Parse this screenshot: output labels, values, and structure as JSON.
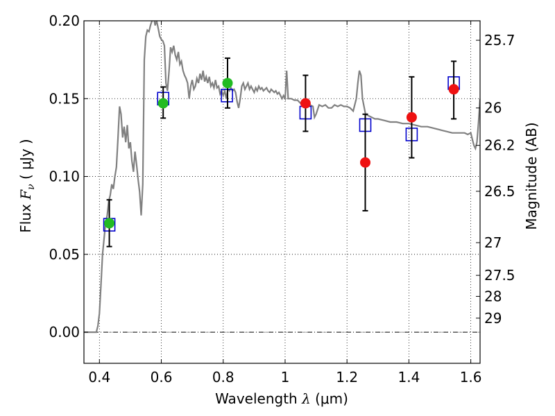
{
  "chart_data": {
    "type": "scatter",
    "xlabel": "Wavelength",
    "xlabel_symbol": "λ",
    "xlabel_unit": "(μm)",
    "ylabel": "Flux",
    "ylabel_symbol": "F",
    "ylabel_subscript": "ν",
    "ylabel_unit": "( μJy )",
    "y2label": "Magnitude (AB)",
    "xlim": [
      0.35,
      1.63
    ],
    "ylim": [
      -0.02,
      0.2
    ],
    "grid": true,
    "x_ticks": [
      {
        "value": 0.4,
        "label": "0.4"
      },
      {
        "value": 0.6,
        "label": "0.6"
      },
      {
        "value": 0.8,
        "label": "0.8"
      },
      {
        "value": 1.0,
        "label": "1"
      },
      {
        "value": 1.2,
        "label": "1.2"
      },
      {
        "value": 1.4,
        "label": "1.4"
      },
      {
        "value": 1.6,
        "label": "1.6"
      }
    ],
    "y_ticks": [
      {
        "value": 0.0,
        "label": "0.00"
      },
      {
        "value": 0.05,
        "label": "0.05"
      },
      {
        "value": 0.1,
        "label": "0.10"
      },
      {
        "value": 0.15,
        "label": "0.15"
      },
      {
        "value": 0.2,
        "label": "0.20"
      }
    ],
    "y2_ticks": [
      {
        "flux": 0.1875,
        "label": "25.7"
      },
      {
        "flux": 0.144,
        "label": "26"
      },
      {
        "flux": 0.12,
        "label": "26.2"
      },
      {
        "flux": 0.0905,
        "label": "26.5"
      },
      {
        "flux": 0.0575,
        "label": "27"
      },
      {
        "flux": 0.0365,
        "label": "27.5"
      },
      {
        "flux": 0.023,
        "label": "28"
      },
      {
        "flux": 0.009,
        "label": "29"
      }
    ],
    "series": [
      {
        "name": "model-spectrum",
        "kind": "line",
        "color": "#808080",
        "points": [
          [
            0.35,
            0.0
          ],
          [
            0.39,
            0.0
          ],
          [
            0.395,
            0.004
          ],
          [
            0.4,
            0.012
          ],
          [
            0.405,
            0.03
          ],
          [
            0.41,
            0.05
          ],
          [
            0.415,
            0.06
          ],
          [
            0.42,
            0.07
          ],
          [
            0.425,
            0.075
          ],
          [
            0.43,
            0.084
          ],
          [
            0.435,
            0.088
          ],
          [
            0.44,
            0.095
          ],
          [
            0.445,
            0.092
          ],
          [
            0.45,
            0.1
          ],
          [
            0.455,
            0.106
          ],
          [
            0.46,
            0.125
          ],
          [
            0.465,
            0.145
          ],
          [
            0.47,
            0.14
          ],
          [
            0.475,
            0.125
          ],
          [
            0.48,
            0.132
          ],
          [
            0.485,
            0.122
          ],
          [
            0.49,
            0.133
          ],
          [
            0.495,
            0.118
          ],
          [
            0.5,
            0.122
          ],
          [
            0.505,
            0.11
          ],
          [
            0.51,
            0.103
          ],
          [
            0.515,
            0.116
          ],
          [
            0.52,
            0.108
          ],
          [
            0.525,
            0.098
          ],
          [
            0.53,
            0.09
          ],
          [
            0.535,
            0.075
          ],
          [
            0.54,
            0.095
          ],
          [
            0.545,
            0.175
          ],
          [
            0.55,
            0.19
          ],
          [
            0.555,
            0.194
          ],
          [
            0.56,
            0.193
          ],
          [
            0.565,
            0.197
          ],
          [
            0.57,
            0.2
          ],
          [
            0.575,
            0.203
          ],
          [
            0.58,
            0.197
          ],
          [
            0.585,
            0.2
          ],
          [
            0.59,
            0.195
          ],
          [
            0.595,
            0.19
          ],
          [
            0.6,
            0.188
          ],
          [
            0.605,
            0.187
          ],
          [
            0.61,
            0.184
          ],
          [
            0.615,
            0.16
          ],
          [
            0.62,
            0.155
          ],
          [
            0.625,
            0.168
          ],
          [
            0.63,
            0.183
          ],
          [
            0.635,
            0.18
          ],
          [
            0.64,
            0.184
          ],
          [
            0.645,
            0.178
          ],
          [
            0.65,
            0.175
          ],
          [
            0.655,
            0.18
          ],
          [
            0.66,
            0.172
          ],
          [
            0.665,
            0.174
          ],
          [
            0.67,
            0.168
          ],
          [
            0.675,
            0.165
          ],
          [
            0.68,
            0.163
          ],
          [
            0.685,
            0.16
          ],
          [
            0.69,
            0.15
          ],
          [
            0.695,
            0.158
          ],
          [
            0.7,
            0.162
          ],
          [
            0.705,
            0.156
          ],
          [
            0.71,
            0.158
          ],
          [
            0.715,
            0.163
          ],
          [
            0.72,
            0.16
          ],
          [
            0.725,
            0.166
          ],
          [
            0.73,
            0.162
          ],
          [
            0.735,
            0.168
          ],
          [
            0.74,
            0.161
          ],
          [
            0.745,
            0.164
          ],
          [
            0.75,
            0.16
          ],
          [
            0.755,
            0.164
          ],
          [
            0.76,
            0.158
          ],
          [
            0.765,
            0.16
          ],
          [
            0.77,
            0.157
          ],
          [
            0.775,
            0.162
          ],
          [
            0.78,
            0.157
          ],
          [
            0.785,
            0.158
          ],
          [
            0.79,
            0.153
          ],
          [
            0.795,
            0.155
          ],
          [
            0.8,
            0.152
          ],
          [
            0.805,
            0.155
          ],
          [
            0.81,
            0.15
          ],
          [
            0.815,
            0.156
          ],
          [
            0.82,
            0.155
          ],
          [
            0.825,
            0.157
          ],
          [
            0.83,
            0.155
          ],
          [
            0.835,
            0.156
          ],
          [
            0.84,
            0.154
          ],
          [
            0.845,
            0.148
          ],
          [
            0.85,
            0.144
          ],
          [
            0.855,
            0.15
          ],
          [
            0.86,
            0.158
          ],
          [
            0.865,
            0.16
          ],
          [
            0.87,
            0.156
          ],
          [
            0.875,
            0.158
          ],
          [
            0.88,
            0.16
          ],
          [
            0.885,
            0.156
          ],
          [
            0.89,
            0.158
          ],
          [
            0.895,
            0.156
          ],
          [
            0.9,
            0.154
          ],
          [
            0.905,
            0.157
          ],
          [
            0.91,
            0.155
          ],
          [
            0.915,
            0.158
          ],
          [
            0.92,
            0.156
          ],
          [
            0.925,
            0.157
          ],
          [
            0.93,
            0.155
          ],
          [
            0.935,
            0.156
          ],
          [
            0.94,
            0.157
          ],
          [
            0.945,
            0.155
          ],
          [
            0.95,
            0.154
          ],
          [
            0.955,
            0.156
          ],
          [
            0.96,
            0.155
          ],
          [
            0.965,
            0.154
          ],
          [
            0.97,
            0.155
          ],
          [
            0.975,
            0.153
          ],
          [
            0.98,
            0.154
          ],
          [
            0.985,
            0.152
          ],
          [
            0.99,
            0.15
          ],
          [
            0.995,
            0.152
          ],
          [
            1.0,
            0.15
          ],
          [
            1.005,
            0.168
          ],
          [
            1.01,
            0.15
          ],
          [
            1.02,
            0.15
          ],
          [
            1.03,
            0.149
          ],
          [
            1.04,
            0.149
          ],
          [
            1.05,
            0.147
          ],
          [
            1.06,
            0.149
          ],
          [
            1.07,
            0.146
          ],
          [
            1.08,
            0.146
          ],
          [
            1.09,
            0.145
          ],
          [
            1.095,
            0.138
          ],
          [
            1.1,
            0.14
          ],
          [
            1.11,
            0.146
          ],
          [
            1.12,
            0.145
          ],
          [
            1.13,
            0.146
          ],
          [
            1.14,
            0.144
          ],
          [
            1.15,
            0.144
          ],
          [
            1.16,
            0.146
          ],
          [
            1.17,
            0.145
          ],
          [
            1.18,
            0.146
          ],
          [
            1.19,
            0.145
          ],
          [
            1.2,
            0.145
          ],
          [
            1.21,
            0.144
          ],
          [
            1.22,
            0.142
          ],
          [
            1.23,
            0.15
          ],
          [
            1.235,
            0.16
          ],
          [
            1.24,
            0.168
          ],
          [
            1.245,
            0.165
          ],
          [
            1.25,
            0.15
          ],
          [
            1.26,
            0.14
          ],
          [
            1.27,
            0.139
          ],
          [
            1.28,
            0.138
          ],
          [
            1.29,
            0.137
          ],
          [
            1.3,
            0.137
          ],
          [
            1.32,
            0.136
          ],
          [
            1.34,
            0.135
          ],
          [
            1.36,
            0.135
          ],
          [
            1.38,
            0.134
          ],
          [
            1.4,
            0.134
          ],
          [
            1.42,
            0.133
          ],
          [
            1.44,
            0.132
          ],
          [
            1.46,
            0.132
          ],
          [
            1.48,
            0.131
          ],
          [
            1.5,
            0.13
          ],
          [
            1.52,
            0.129
          ],
          [
            1.54,
            0.128
          ],
          [
            1.56,
            0.128
          ],
          [
            1.58,
            0.128
          ],
          [
            1.59,
            0.127
          ],
          [
            1.6,
            0.128
          ],
          [
            1.605,
            0.124
          ],
          [
            1.61,
            0.12
          ],
          [
            1.615,
            0.118
          ],
          [
            1.62,
            0.122
          ],
          [
            1.625,
            0.135
          ],
          [
            1.63,
            0.15
          ]
        ]
      },
      {
        "name": "model-band-flux",
        "kind": "open-square",
        "color": "#0000cc",
        "points": [
          [
            0.432,
            0.069
          ],
          [
            0.606,
            0.15
          ],
          [
            0.812,
            0.152
          ],
          [
            1.066,
            0.141
          ],
          [
            1.259,
            0.133
          ],
          [
            1.409,
            0.127
          ],
          [
            1.545,
            0.16
          ]
        ]
      },
      {
        "name": "optical-detection",
        "kind": "filled-circle",
        "color": "#22bb22",
        "points": [
          [
            0.432,
            0.07
          ],
          [
            0.606,
            0.147
          ],
          [
            0.814,
            0.16
          ]
        ]
      },
      {
        "name": "nir-detection",
        "kind": "filled-circle",
        "color": "#ee1111",
        "points": [
          [
            1.066,
            0.147
          ],
          [
            1.259,
            0.109
          ],
          [
            1.409,
            0.138
          ],
          [
            1.545,
            0.156
          ]
        ]
      },
      {
        "name": "error-bars",
        "kind": "errorbar",
        "color": "#000000",
        "points": [
          {
            "x": 0.432,
            "low": 0.055,
            "high": 0.085
          },
          {
            "x": 0.606,
            "low": 0.1375,
            "high": 0.1575
          },
          {
            "x": 0.814,
            "low": 0.144,
            "high": 0.176
          },
          {
            "x": 1.066,
            "low": 0.129,
            "high": 0.165
          },
          {
            "x": 1.259,
            "low": 0.078,
            "high": 0.14
          },
          {
            "x": 1.409,
            "low": 0.112,
            "high": 0.164
          },
          {
            "x": 1.545,
            "low": 0.137,
            "high": 0.174
          }
        ]
      }
    ]
  }
}
